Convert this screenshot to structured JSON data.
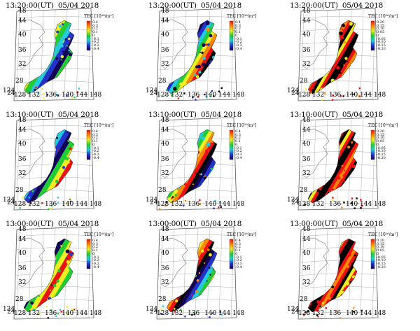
{
  "figure": {
    "rows": [
      {
        "time": "13:20:00(UT)",
        "date": "05/04 2018"
      },
      {
        "time": "13:10:00(UT)",
        "date": "05/04 2018"
      },
      {
        "time": "13:00:00(UT)",
        "date": "05/04 2018"
      }
    ],
    "columns": [
      {
        "colorbar_label": "TEC [10¹⁶/m²]",
        "ticks": [
          "0.4",
          "0.3",
          "0.2",
          "0.1",
          "0",
          "-0.1",
          "-0.2",
          "-0.3",
          "-0.4"
        ]
      },
      {
        "colorbar_label": "TEC [10¹⁶/m²]",
        "ticks": [
          "0.4",
          "0.3",
          "0.2",
          "0.1",
          "0",
          "-0.1",
          "-0.2",
          "-0.3",
          "-0.4"
        ]
      },
      {
        "colorbar_label": "TEC [10¹⁶/m²]",
        "ticks": [
          "0.20",
          "0.15",
          "0.10",
          "0.05",
          "0",
          "-0.05",
          "-0.10",
          "-0.15",
          "-0.20"
        ]
      }
    ],
    "latitude_labels": [
      "48",
      "44",
      "40",
      "36",
      "32",
      "28",
      "24"
    ],
    "longitude_labels": [
      "124",
      "128",
      "132",
      "136",
      "140",
      "144",
      "148"
    ],
    "colors": {
      "red": "#ee1111",
      "orange": "#ff8800",
      "yellow": "#eeee22",
      "green": "#22cc33",
      "cyan": "#22ccdd",
      "blue": "#2233cc",
      "navy": "#110055",
      "black": "#000000",
      "map_line": "#888888"
    }
  }
}
